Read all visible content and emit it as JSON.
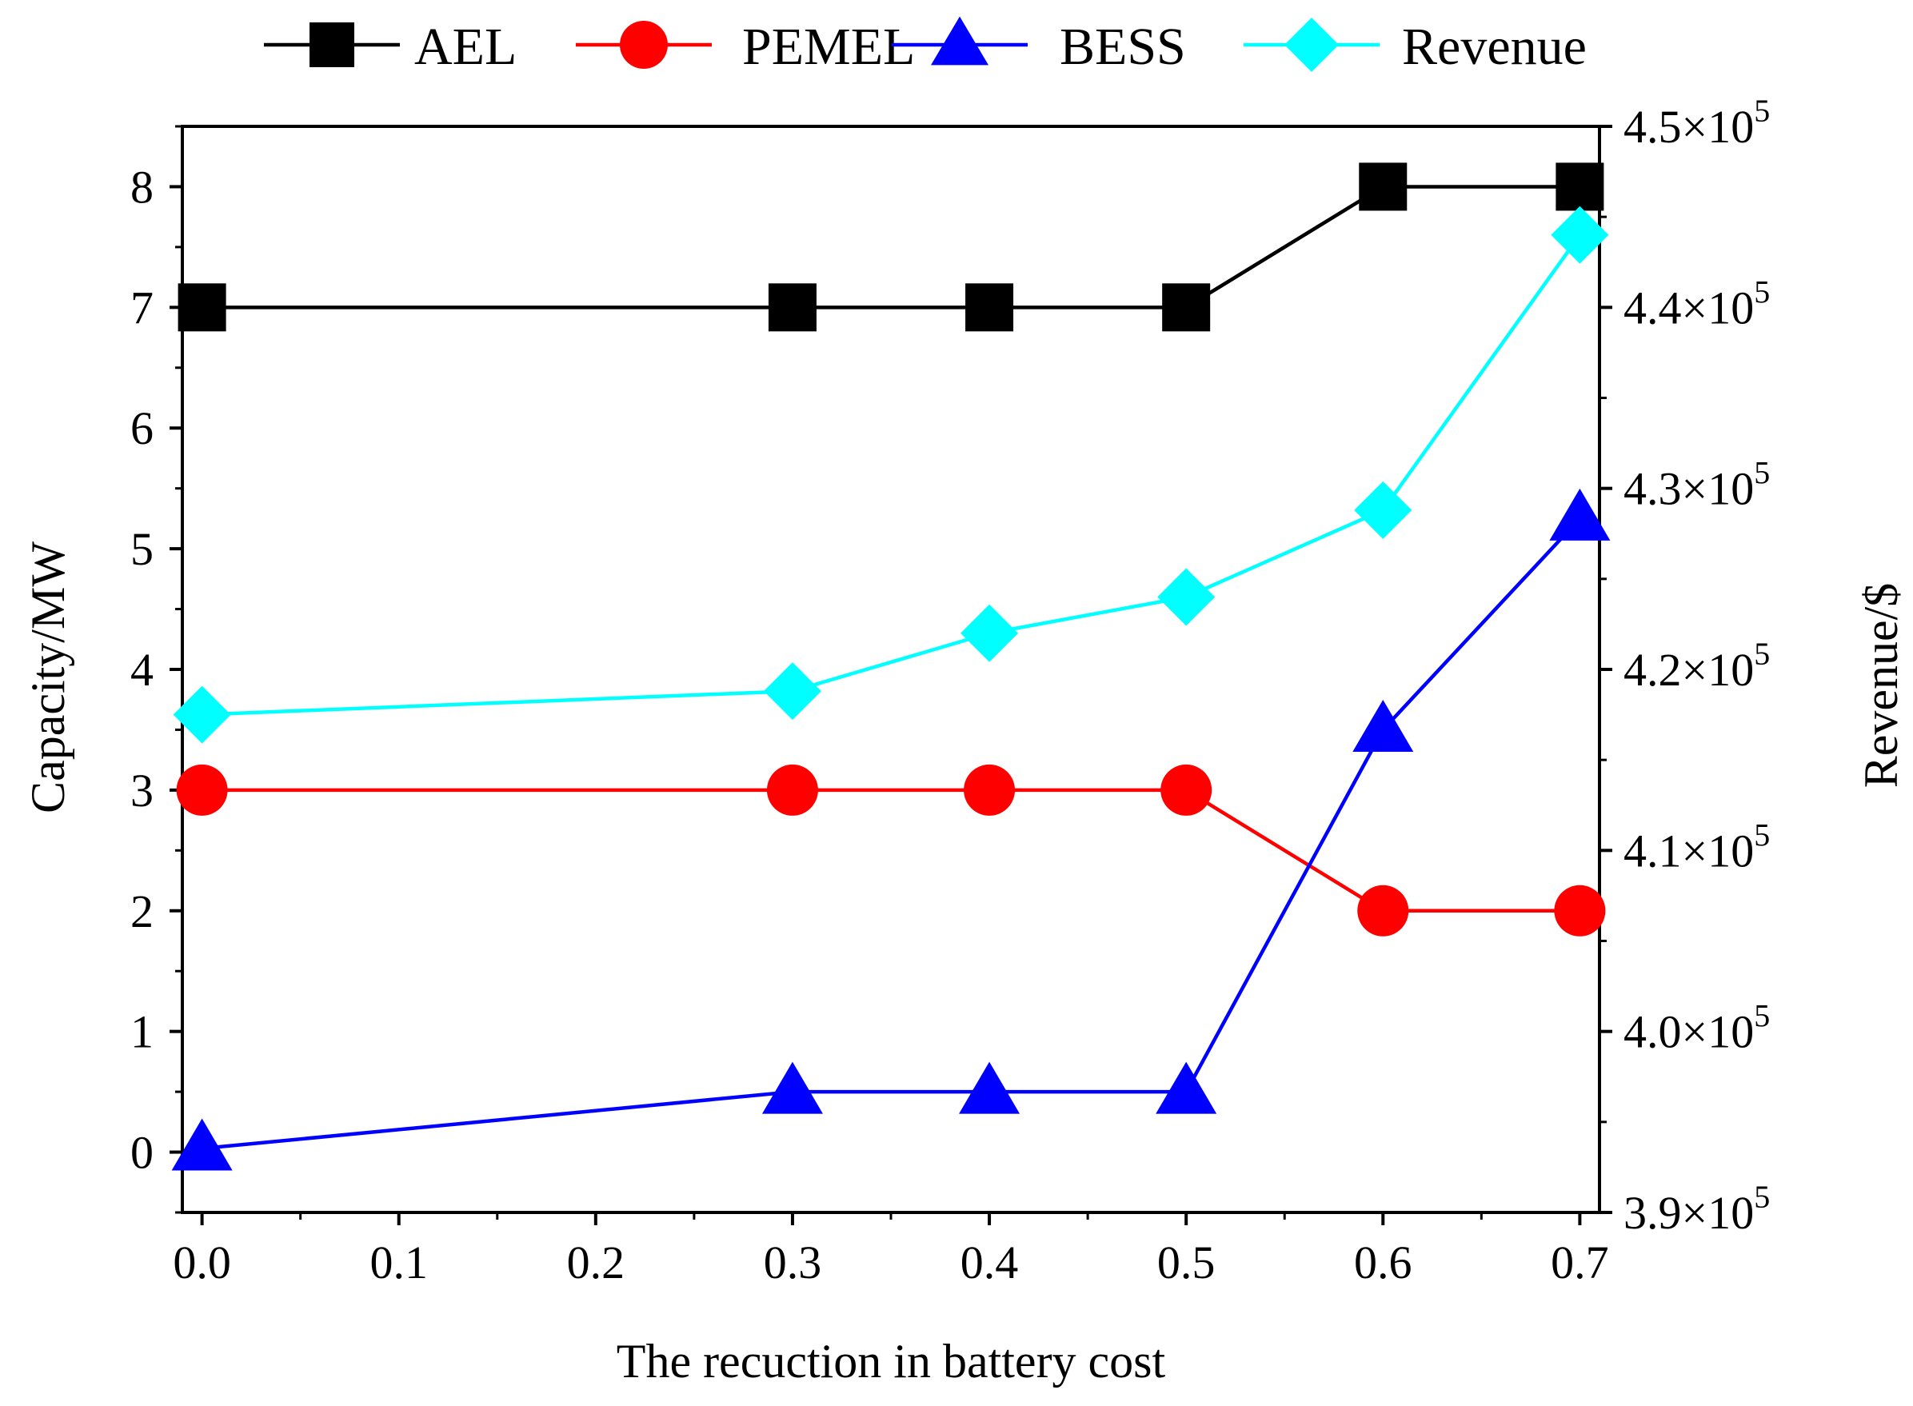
{
  "chart_data": {
    "type": "line",
    "title": "",
    "xlabel": "The recuction in battery cost",
    "ylabel_left": "Capacity/MW",
    "ylabel_right": "Revenue/$",
    "x": [
      0.0,
      0.3,
      0.4,
      0.5,
      0.6,
      0.7
    ],
    "xlim": [
      -0.01,
      0.71
    ],
    "xticks": [
      "0.0",
      "0.1",
      "0.2",
      "0.3",
      "0.4",
      "0.5",
      "0.6",
      "0.7"
    ],
    "ylim_left": [
      -0.5,
      8.5
    ],
    "yticks_left": [
      "0",
      "1",
      "2",
      "3",
      "4",
      "5",
      "6",
      "7",
      "8"
    ],
    "ylim_right": [
      390000,
      450000
    ],
    "yticks_right": [
      {
        "mantissa": "3.9×10",
        "exp": "5"
      },
      {
        "mantissa": "4.0×10",
        "exp": "5"
      },
      {
        "mantissa": "4.1×10",
        "exp": "5"
      },
      {
        "mantissa": "4.2×10",
        "exp": "5"
      },
      {
        "mantissa": "4.3×10",
        "exp": "5"
      },
      {
        "mantissa": "4.4×10",
        "exp": "5"
      },
      {
        "mantissa": "4.5×10",
        "exp": "5"
      }
    ],
    "legend_position": "top",
    "series": [
      {
        "name": "AEL",
        "axis": "left",
        "color": "#000000",
        "marker": "square",
        "values": [
          7,
          7,
          7,
          7,
          8,
          8
        ]
      },
      {
        "name": "PEMEL",
        "axis": "left",
        "color": "#ff0000",
        "marker": "circle",
        "values": [
          3,
          3,
          3,
          3,
          2,
          2
        ]
      },
      {
        "name": "BESS",
        "axis": "left",
        "color": "#0000ff",
        "marker": "triangle",
        "values": [
          0.03,
          0.5,
          0.5,
          0.5,
          3.5,
          5.25
        ]
      },
      {
        "name": "Revenue",
        "axis": "right",
        "color": "#00ffff",
        "marker": "diamond",
        "values": [
          417500,
          418800,
          422000,
          424000,
          428800,
          444000
        ]
      }
    ]
  }
}
